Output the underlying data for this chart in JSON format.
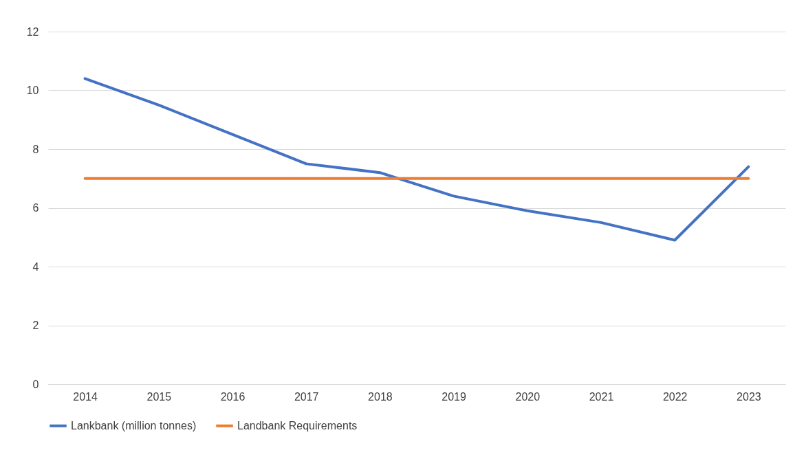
{
  "chart_data": {
    "type": "line",
    "categories": [
      "2014",
      "2015",
      "2016",
      "2017",
      "2018",
      "2019",
      "2020",
      "2021",
      "2022",
      "2023"
    ],
    "series": [
      {
        "name": "Lankbank (million tonnes)",
        "color": "#4472c4",
        "values": [
          10.4,
          9.5,
          8.5,
          7.5,
          7.2,
          6.4,
          5.9,
          5.5,
          4.9,
          7.4
        ]
      },
      {
        "name": "Landbank Requirements",
        "color": "#ed7d31",
        "values": [
          7,
          7,
          7,
          7,
          7,
          7,
          7,
          7,
          7,
          7
        ]
      }
    ],
    "ylim": [
      0,
      12
    ],
    "yticks": [
      0,
      2,
      4,
      6,
      8,
      10,
      12
    ],
    "grid": "y",
    "legend": "bottom",
    "marker": "none",
    "line_style": "solid"
  }
}
